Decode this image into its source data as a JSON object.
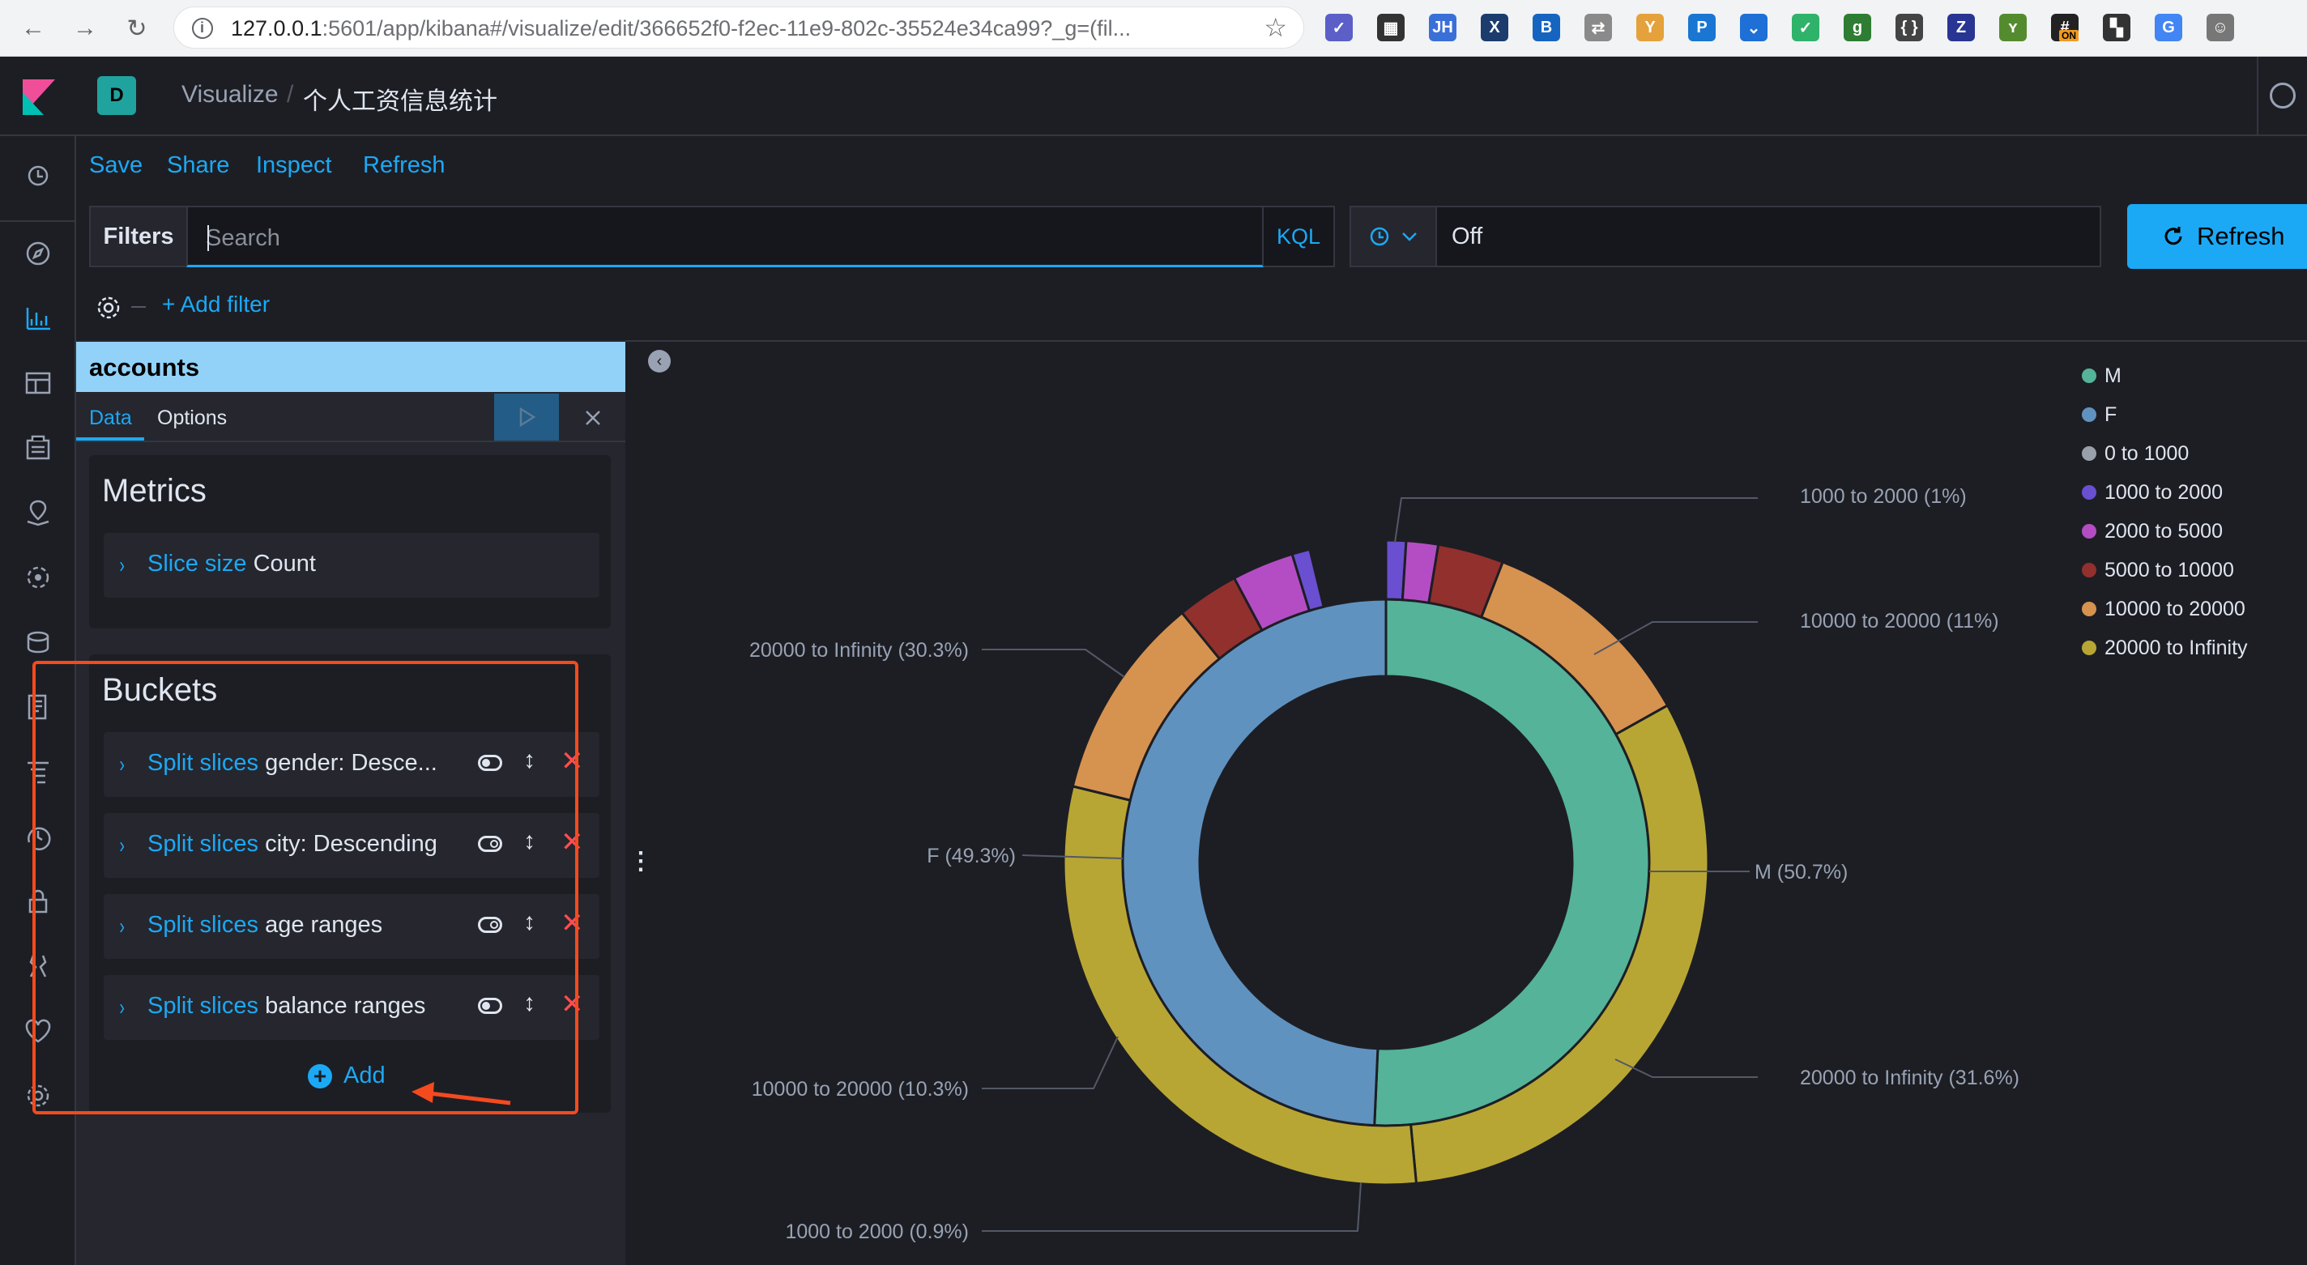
{
  "browser": {
    "url_host": "127.0.0.1",
    "url_rest": ":5601/app/kibana#/visualize/edit/366652f0-f2ec-11e9-802c-35524e34ca99?_g=(fil...",
    "back_icon": "←",
    "forward_icon": "→",
    "reload_icon": "↻",
    "star_icon": "☆",
    "extensions": [
      {
        "name": "ext-check",
        "glyph": "✓",
        "color": "#5b5fc7"
      },
      {
        "name": "ext-qr",
        "glyph": "▦",
        "color": "#333333"
      },
      {
        "name": "ext-jh",
        "glyph": "JH",
        "color": "#3b6fd8"
      },
      {
        "name": "ext-x",
        "glyph": "X",
        "color": "#1b3c6d"
      },
      {
        "name": "ext-b",
        "glyph": "B",
        "color": "#1565c0"
      },
      {
        "name": "ext-translate",
        "glyph": "⇄",
        "color": "#8a8a8a"
      },
      {
        "name": "ext-y",
        "glyph": "Y",
        "color": "#e5a13b"
      },
      {
        "name": "ext-p",
        "glyph": "P",
        "color": "#1976d2"
      },
      {
        "name": "ext-pocket",
        "glyph": "⌄",
        "color": "#1e6fd6"
      },
      {
        "name": "ext-v",
        "glyph": "✓",
        "color": "#2fb36a"
      },
      {
        "name": "ext-g",
        "glyph": "g",
        "color": "#2e7d32"
      },
      {
        "name": "ext-code",
        "glyph": "{ }",
        "color": "#444444"
      },
      {
        "name": "ext-z",
        "glyph": "Z",
        "color": "#283593"
      },
      {
        "name": "ext-leaf",
        "glyph": "ʏ",
        "color": "#558b2f"
      },
      {
        "name": "ext-hash-on",
        "glyph": "#",
        "color": "#222222"
      },
      {
        "name": "ext-binoculars",
        "glyph": "▚",
        "color": "#333333"
      },
      {
        "name": "ext-google",
        "glyph": "G",
        "color": "#4285f4"
      },
      {
        "name": "ext-avatar",
        "glyph": "☺",
        "color": "#777777"
      }
    ],
    "ext_badge_on": "ON"
  },
  "header": {
    "space_initial": "D",
    "breadcrumb_parent": "Visualize",
    "breadcrumb_separator": "/",
    "breadcrumb_current": "个人工资信息统计"
  },
  "topmenu": {
    "save": "Save",
    "share": "Share",
    "inspect": "Inspect",
    "refresh": "Refresh"
  },
  "querybar": {
    "filters_label": "Filters",
    "search_placeholder": "Search",
    "language": "KQL",
    "refresh_interval": "Off",
    "refresh_button": "Refresh",
    "add_filter": "+ Add filter"
  },
  "editor": {
    "index_pattern": "accounts",
    "tab_data": "Data",
    "tab_options": "Options",
    "metrics_title": "Metrics",
    "metric": {
      "label": "Slice size",
      "desc": "Count"
    },
    "buckets_title": "Buckets",
    "buckets": [
      {
        "label": "Split slices",
        "desc": "gender: Desce...",
        "enabled": true
      },
      {
        "label": "Split slices",
        "desc": "city: Descending",
        "enabled": false
      },
      {
        "label": "Split slices",
        "desc": "age ranges",
        "enabled": false
      },
      {
        "label": "Split slices",
        "desc": "balance ranges",
        "enabled": true
      }
    ],
    "add_label": "Add",
    "chevron_glyph": "›",
    "move_glyph": "↕",
    "remove_glyph": "✕",
    "annotation_color": "#f54a1e"
  },
  "chart_data": {
    "type": "pie",
    "donut": true,
    "rings": [
      {
        "name": "gender",
        "slices": [
          {
            "label": "M",
            "percent": 50.7,
            "color": "#54b399"
          },
          {
            "label": "F",
            "percent": 49.3,
            "color": "#6092c0"
          }
        ]
      },
      {
        "name": "balance ranges",
        "slices": [
          {
            "parent": "M",
            "label": "1000 to 2000",
            "percent": 1,
            "color": "#6a4fd1"
          },
          {
            "parent": "M",
            "label": "2000 to 5000",
            "percent": 1.6,
            "color": "#b44dc4"
          },
          {
            "parent": "M",
            "label": "5000 to 10000",
            "percent": 3.3,
            "color": "#92302e"
          },
          {
            "parent": "M",
            "label": "10000 to 20000",
            "percent": 11,
            "color": "#d6924f"
          },
          {
            "parent": "M",
            "label": "20000 to Infinity",
            "percent": 31.6,
            "color": "#b8a634"
          },
          {
            "parent": "F",
            "label": "20000 to Infinity",
            "percent": 30.3,
            "color": "#b8a634"
          },
          {
            "parent": "F",
            "label": "10000 to 20000",
            "percent": 10.3,
            "color": "#d6924f"
          },
          {
            "parent": "F",
            "label": "5000 to 10000",
            "percent": 3.1,
            "color": "#92302e"
          },
          {
            "parent": "F",
            "label": "2000 to 5000",
            "percent": 3.1,
            "color": "#b44dc4"
          },
          {
            "parent": "F",
            "label": "1000 to 2000",
            "percent": 0.9,
            "color": "#6a4fd1"
          }
        ]
      }
    ],
    "data_labels": [
      "1000 to 2000 (1%)",
      "10000 to 20000 (11%)",
      "M (50.7%)",
      "20000 to Infinity (31.6%)",
      "1000 to 2000 (0.9%)",
      "10000 to 20000 (10.3%)",
      "F (49.3%)",
      "20000 to Infinity (30.3%)"
    ],
    "legend": [
      {
        "label": "M",
        "color": "#54b399"
      },
      {
        "label": "F",
        "color": "#6092c0"
      },
      {
        "label": "0 to 1000",
        "color": "#9aa0a9"
      },
      {
        "label": "1000 to 2000",
        "color": "#6a4fd1"
      },
      {
        "label": "2000 to 5000",
        "color": "#b44dc4"
      },
      {
        "label": "5000 to 10000",
        "color": "#92302e"
      },
      {
        "label": "10000 to 20000",
        "color": "#d6924f"
      },
      {
        "label": "20000 to Infinity",
        "color": "#b8a634"
      }
    ],
    "legend_position": "top-right"
  }
}
